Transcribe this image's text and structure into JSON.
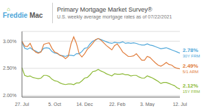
{
  "chart_data": {
    "type": "line",
    "title": "Primary Mortgage Market Survey®",
    "subtitle": "U.S. weekly average mortgage rates as of 07/22/2021",
    "annotations": [
      {
        "text": "⌂",
        "color": "#7db82a"
      },
      {
        "text": "Freddie",
        "color": "#4da6d9"
      },
      {
        "text": "Mac",
        "color": "#555555"
      }
    ],
    "categories": [
      "27. Jul",
      null,
      null,
      null,
      null,
      null,
      null,
      null,
      null,
      null,
      null,
      null,
      "5. Oct",
      null,
      null,
      null,
      null,
      null,
      null,
      null,
      null,
      null,
      null,
      "14. Dec",
      null,
      null,
      null,
      null,
      null,
      null,
      null,
      null,
      null,
      null,
      null,
      "22. Feb",
      null,
      null,
      null,
      null,
      null,
      null,
      null,
      null,
      null,
      null,
      "3. May",
      null,
      null,
      null,
      null,
      null,
      null,
      null,
      null,
      null,
      null,
      null,
      "12. Jul"
    ],
    "series": [
      {
        "name": "30Y FRM",
        "color": "#4da6d9",
        "values": [
          2.98,
          2.87,
          2.85,
          2.88,
          2.84,
          2.82,
          2.79,
          2.81,
          2.87,
          2.88,
          2.87,
          2.81,
          2.78,
          2.77,
          2.74,
          2.73,
          2.72,
          2.74,
          2.74,
          2.73,
          2.77,
          2.77,
          2.81,
          2.87,
          2.88,
          2.95,
          3.0,
          3.02,
          3.05,
          3.03,
          3.01,
          2.99,
          2.97,
          2.96,
          2.98,
          2.97,
          2.97,
          2.99,
          2.96,
          2.97,
          2.96,
          2.97,
          2.96,
          2.94,
          2.93,
          2.93,
          2.95,
          2.93,
          2.92,
          2.9,
          2.88,
          2.86,
          2.87,
          2.88,
          2.86,
          2.84,
          2.82,
          2.8,
          2.78
        ],
        "value_labels": [
          null,
          null,
          null,
          null,
          null,
          null,
          null,
          null,
          null,
          null,
          null,
          null,
          null,
          null,
          null,
          null,
          null,
          null,
          null,
          null,
          null,
          null,
          null,
          null,
          null,
          null,
          null,
          null,
          null,
          null,
          null,
          null,
          null,
          null,
          null,
          null,
          null,
          null,
          null,
          null,
          null,
          null,
          null,
          null,
          null,
          null,
          null,
          null,
          null,
          null,
          null,
          null,
          null,
          null,
          null,
          null,
          null,
          null,
          "2.78%"
        ]
      },
      {
        "name": "5/1 ARM",
        "color": "#e07b39",
        "values": [
          3.0,
          2.91,
          2.9,
          2.96,
          2.85,
          2.8,
          2.78,
          2.8,
          2.94,
          2.96,
          2.97,
          2.87,
          2.8,
          2.78,
          2.74,
          2.72,
          2.68,
          2.72,
          2.95,
          3.08,
          2.96,
          2.77,
          2.71,
          2.77,
          2.85,
          2.9,
          2.96,
          3.03,
          3.05,
          3.02,
          2.97,
          2.92,
          2.88,
          2.84,
          2.92,
          2.95,
          2.88,
          2.8,
          2.76,
          2.72,
          2.72,
          2.73,
          2.77,
          2.71,
          2.65,
          2.65,
          2.72,
          2.7,
          2.65,
          2.6,
          2.56,
          2.54,
          2.57,
          2.61,
          2.57,
          2.56,
          2.52,
          2.5,
          2.49
        ],
        "value_labels": [
          null,
          null,
          null,
          null,
          null,
          null,
          null,
          null,
          null,
          null,
          null,
          null,
          null,
          null,
          null,
          null,
          null,
          null,
          null,
          null,
          null,
          null,
          null,
          null,
          null,
          null,
          null,
          null,
          null,
          null,
          null,
          null,
          null,
          null,
          null,
          null,
          null,
          null,
          null,
          null,
          null,
          null,
          null,
          null,
          null,
          null,
          null,
          null,
          null,
          null,
          null,
          null,
          null,
          null,
          null,
          null,
          null,
          null,
          "2.49%"
        ]
      },
      {
        "name": "15Y FRM",
        "color": "#8ab832",
        "values": [
          2.51,
          2.37,
          2.35,
          2.36,
          2.33,
          2.32,
          2.31,
          2.32,
          2.37,
          2.37,
          2.35,
          2.3,
          2.27,
          2.26,
          2.23,
          2.21,
          2.2,
          2.21,
          2.21,
          2.2,
          2.23,
          2.23,
          2.27,
          2.32,
          2.33,
          2.38,
          2.44,
          2.45,
          2.48,
          2.45,
          2.43,
          2.4,
          2.38,
          2.36,
          2.4,
          2.39,
          2.39,
          2.4,
          2.38,
          2.38,
          2.36,
          2.37,
          2.37,
          2.34,
          2.32,
          2.32,
          2.36,
          2.34,
          2.32,
          2.29,
          2.26,
          2.22,
          2.24,
          2.24,
          2.22,
          2.2,
          2.18,
          2.14,
          2.12
        ],
        "value_labels": [
          null,
          null,
          null,
          null,
          null,
          null,
          null,
          null,
          null,
          null,
          null,
          null,
          null,
          null,
          null,
          null,
          null,
          null,
          null,
          null,
          null,
          null,
          null,
          null,
          null,
          null,
          null,
          null,
          null,
          null,
          null,
          null,
          null,
          null,
          null,
          null,
          null,
          null,
          null,
          null,
          null,
          null,
          null,
          null,
          null,
          null,
          null,
          null,
          null,
          null,
          null,
          null,
          null,
          null,
          null,
          null,
          null,
          null,
          "2.12%"
        ]
      }
    ],
    "ylim": [
      1.97,
      3.18
    ],
    "yticks": [
      {
        "value": 2.0,
        "label": "2.00%"
      },
      {
        "value": 2.5,
        "label": "2.50%"
      },
      {
        "value": 3.0,
        "label": "3.00%"
      }
    ],
    "grid": true
  }
}
